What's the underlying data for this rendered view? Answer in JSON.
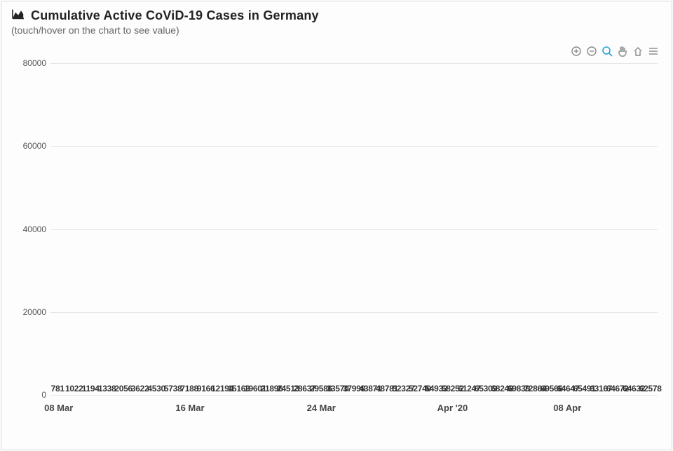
{
  "header": {
    "title": "Cumulative Active CoViD-19 Cases in Germany",
    "subtitle": "(touch/hover on the chart to see value)"
  },
  "chart": {
    "type": "bar",
    "ylim": [
      0,
      80000
    ],
    "yticks": [
      0,
      20000,
      40000,
      60000,
      80000
    ],
    "gridline_color": "#e6e6e6",
    "bar_color": "#f4a93c",
    "bar_label_color": "#333333",
    "tick_label_color": "#555555",
    "tick_label_fontsize": 12,
    "x_tick_fontsize": 13,
    "bar_label_fontsize": 12,
    "background_color": "#fdfdfd",
    "xticks": [
      {
        "index": 0,
        "label": "08 Mar"
      },
      {
        "index": 8,
        "label": "16 Mar"
      },
      {
        "index": 16,
        "label": "24 Mar"
      },
      {
        "index": 24,
        "label": "Apr '20"
      },
      {
        "index": 31,
        "label": "08 Apr"
      }
    ],
    "values": [
      781,
      1022,
      1194,
      1338,
      2056,
      3622,
      4530,
      5738,
      7188,
      9166,
      12194,
      15163,
      19601,
      21896,
      24513,
      28637,
      29586,
      33570,
      37998,
      43871,
      48781,
      52327,
      52740,
      54933,
      58252,
      61247,
      65309,
      68248,
      69839,
      72864,
      69566,
      64647,
      65491,
      63167,
      64672,
      64632,
      62578
    ]
  },
  "toolbar": {
    "zoom_in": "zoom-in",
    "zoom_out": "zoom-out",
    "zoom_select": "zoom-select",
    "pan": "pan",
    "reset": "reset",
    "menu": "menu"
  }
}
